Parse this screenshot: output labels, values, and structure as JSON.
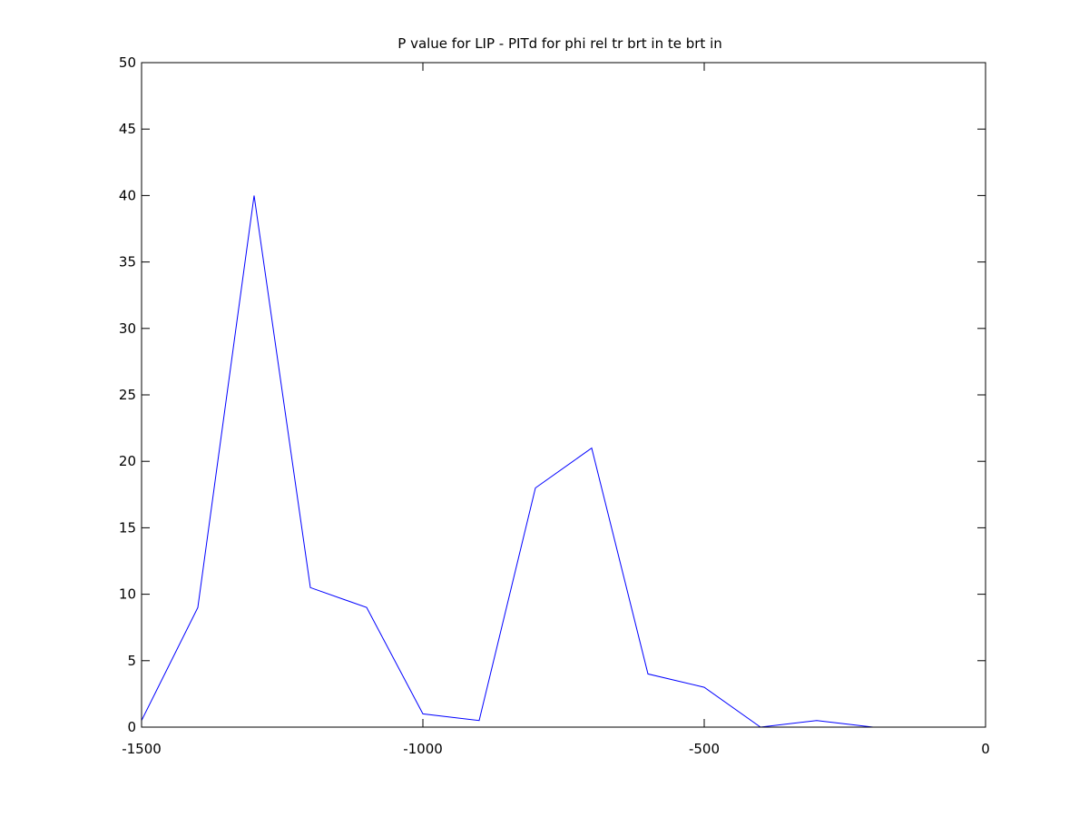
{
  "chart_data": {
    "type": "line",
    "title": "P value for LIP - PITd for phi rel tr brt in te brt in",
    "xlabel": "",
    "ylabel": "",
    "xlim": [
      -1500,
      0
    ],
    "ylim": [
      0,
      50
    ],
    "xticks": [
      -1500,
      -1000,
      -500,
      0
    ],
    "yticks": [
      0,
      5,
      10,
      15,
      20,
      25,
      30,
      35,
      40,
      45,
      50
    ],
    "xtick_labels": [
      "-1500",
      "-1000",
      "-500",
      "0"
    ],
    "ytick_labels": [
      "0",
      "5",
      "10",
      "15",
      "20",
      "25",
      "30",
      "35",
      "40",
      "45",
      "50"
    ],
    "grid": false,
    "series": [
      {
        "color": "#0000ff",
        "x": [
          -1500,
          -1400,
          -1300,
          -1200,
          -1100,
          -1000,
          -900,
          -800,
          -700,
          -600,
          -500,
          -400,
          -300,
          -200
        ],
        "y": [
          0.5,
          9,
          40,
          10.5,
          9,
          1,
          0.5,
          18,
          21,
          4,
          3,
          0,
          0.5,
          0
        ]
      }
    ]
  }
}
